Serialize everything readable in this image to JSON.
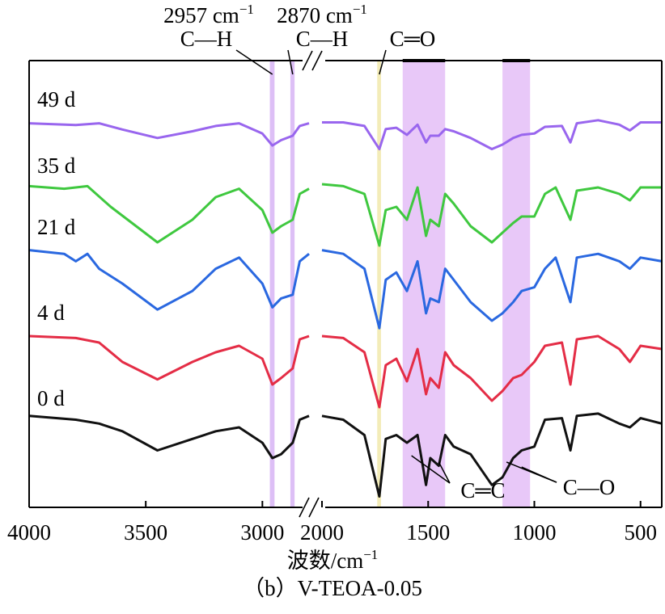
{
  "chart_data": {
    "type": "line",
    "caption": "（b）V-TEOA-0.05",
    "xlabel": "波数/cm",
    "xlabel_sup": "−1",
    "x_axis": {
      "reversed": true,
      "broken": true,
      "left_segment": [
        4000,
        2800
      ],
      "right_segment": [
        2000,
        400
      ],
      "ticks_left": [
        "4000",
        "3500",
        "3000"
      ],
      "ticks_right": [
        "2000",
        "1500",
        "1000",
        "500"
      ]
    },
    "y_axis": {
      "label": "",
      "ticks": false
    },
    "grid": false,
    "legend": "none",
    "series": [
      {
        "name": "49 d",
        "color": "#9966ee",
        "points": [
          [
            4000,
            0.12
          ],
          [
            3800,
            0.16
          ],
          [
            3700,
            0.12
          ],
          [
            3600,
            0.26
          ],
          [
            3450,
            0.45
          ],
          [
            3300,
            0.3
          ],
          [
            3200,
            0.18
          ],
          [
            3100,
            0.12
          ],
          [
            3000,
            0.35
          ],
          [
            2957,
            0.62
          ],
          [
            2920,
            0.5
          ],
          [
            2870,
            0.4
          ],
          [
            2840,
            0.18
          ],
          [
            2800,
            0.12
          ],
          [
            2000,
            0.1
          ],
          [
            1900,
            0.1
          ],
          [
            1800,
            0.18
          ],
          [
            1730,
            0.7
          ],
          [
            1700,
            0.25
          ],
          [
            1650,
            0.22
          ],
          [
            1600,
            0.38
          ],
          [
            1550,
            0.15
          ],
          [
            1510,
            0.55
          ],
          [
            1490,
            0.4
          ],
          [
            1450,
            0.4
          ],
          [
            1420,
            0.25
          ],
          [
            1380,
            0.3
          ],
          [
            1300,
            0.45
          ],
          [
            1200,
            0.7
          ],
          [
            1150,
            0.6
          ],
          [
            1100,
            0.45
          ],
          [
            1060,
            0.38
          ],
          [
            1000,
            0.35
          ],
          [
            950,
            0.2
          ],
          [
            870,
            0.18
          ],
          [
            830,
            0.55
          ],
          [
            800,
            0.12
          ],
          [
            700,
            0.05
          ],
          [
            600,
            0.15
          ],
          [
            550,
            0.28
          ],
          [
            500,
            0.1
          ],
          [
            400,
            0.1
          ]
        ]
      },
      {
        "name": "35 d",
        "color": "#3fc83f",
        "points": [
          [
            4000,
            0.08
          ],
          [
            3850,
            0.12
          ],
          [
            3750,
            0.08
          ],
          [
            3650,
            0.4
          ],
          [
            3450,
            0.95
          ],
          [
            3300,
            0.6
          ],
          [
            3200,
            0.25
          ],
          [
            3100,
            0.12
          ],
          [
            3000,
            0.45
          ],
          [
            2957,
            0.8
          ],
          [
            2920,
            0.7
          ],
          [
            2870,
            0.6
          ],
          [
            2840,
            0.2
          ],
          [
            2800,
            0.12
          ],
          [
            2000,
            0.05
          ],
          [
            1900,
            0.08
          ],
          [
            1800,
            0.2
          ],
          [
            1730,
            1.0
          ],
          [
            1700,
            0.45
          ],
          [
            1650,
            0.4
          ],
          [
            1600,
            0.6
          ],
          [
            1550,
            0.1
          ],
          [
            1510,
            0.85
          ],
          [
            1490,
            0.6
          ],
          [
            1450,
            0.7
          ],
          [
            1420,
            0.2
          ],
          [
            1380,
            0.35
          ],
          [
            1300,
            0.7
          ],
          [
            1200,
            0.95
          ],
          [
            1150,
            0.8
          ],
          [
            1100,
            0.65
          ],
          [
            1060,
            0.55
          ],
          [
            1000,
            0.55
          ],
          [
            950,
            0.2
          ],
          [
            900,
            0.1
          ],
          [
            830,
            0.6
          ],
          [
            800,
            0.15
          ],
          [
            700,
            0.1
          ],
          [
            600,
            0.2
          ],
          [
            550,
            0.3
          ],
          [
            500,
            0.1
          ],
          [
            400,
            0.1
          ]
        ]
      },
      {
        "name": "21 d",
        "color": "#2a68e0",
        "points": [
          [
            4000,
            0.05
          ],
          [
            3850,
            0.1
          ],
          [
            3800,
            0.2
          ],
          [
            3750,
            0.1
          ],
          [
            3700,
            0.3
          ],
          [
            3600,
            0.5
          ],
          [
            3450,
            0.85
          ],
          [
            3300,
            0.6
          ],
          [
            3200,
            0.3
          ],
          [
            3100,
            0.15
          ],
          [
            3000,
            0.5
          ],
          [
            2957,
            0.82
          ],
          [
            2920,
            0.7
          ],
          [
            2870,
            0.65
          ],
          [
            2840,
            0.2
          ],
          [
            2800,
            0.1
          ],
          [
            2000,
            0.05
          ],
          [
            1900,
            0.1
          ],
          [
            1800,
            0.3
          ],
          [
            1730,
            1.1
          ],
          [
            1700,
            0.45
          ],
          [
            1650,
            0.35
          ],
          [
            1600,
            0.6
          ],
          [
            1550,
            0.2
          ],
          [
            1510,
            0.9
          ],
          [
            1490,
            0.7
          ],
          [
            1450,
            0.75
          ],
          [
            1420,
            0.3
          ],
          [
            1380,
            0.45
          ],
          [
            1300,
            0.75
          ],
          [
            1200,
            1.0
          ],
          [
            1150,
            0.9
          ],
          [
            1100,
            0.75
          ],
          [
            1060,
            0.6
          ],
          [
            1000,
            0.55
          ],
          [
            950,
            0.3
          ],
          [
            900,
            0.15
          ],
          [
            830,
            0.75
          ],
          [
            800,
            0.15
          ],
          [
            700,
            0.1
          ],
          [
            600,
            0.2
          ],
          [
            550,
            0.3
          ],
          [
            500,
            0.15
          ],
          [
            400,
            0.2
          ]
        ]
      },
      {
        "name": "4 d",
        "color": "#e42d46",
        "points": [
          [
            4000,
            0.05
          ],
          [
            3800,
            0.08
          ],
          [
            3700,
            0.15
          ],
          [
            3600,
            0.45
          ],
          [
            3450,
            0.72
          ],
          [
            3300,
            0.45
          ],
          [
            3200,
            0.3
          ],
          [
            3100,
            0.2
          ],
          [
            3000,
            0.4
          ],
          [
            2957,
            0.8
          ],
          [
            2920,
            0.7
          ],
          [
            2870,
            0.55
          ],
          [
            2840,
            0.1
          ],
          [
            2800,
            0.05
          ],
          [
            2000,
            0.05
          ],
          [
            1900,
            0.08
          ],
          [
            1800,
            0.3
          ],
          [
            1730,
            1.15
          ],
          [
            1700,
            0.5
          ],
          [
            1650,
            0.4
          ],
          [
            1600,
            0.75
          ],
          [
            1550,
            0.25
          ],
          [
            1510,
            0.95
          ],
          [
            1490,
            0.7
          ],
          [
            1450,
            0.85
          ],
          [
            1420,
            0.3
          ],
          [
            1380,
            0.5
          ],
          [
            1300,
            0.7
          ],
          [
            1200,
            1.05
          ],
          [
            1150,
            0.9
          ],
          [
            1100,
            0.7
          ],
          [
            1060,
            0.65
          ],
          [
            1000,
            0.45
          ],
          [
            950,
            0.2
          ],
          [
            870,
            0.15
          ],
          [
            830,
            0.8
          ],
          [
            800,
            0.1
          ],
          [
            700,
            0.05
          ],
          [
            600,
            0.25
          ],
          [
            550,
            0.45
          ],
          [
            500,
            0.2
          ],
          [
            400,
            0.25
          ]
        ]
      },
      {
        "name": "0 d",
        "color": "#111111",
        "points": [
          [
            4000,
            0.05
          ],
          [
            3800,
            0.1
          ],
          [
            3700,
            0.15
          ],
          [
            3600,
            0.25
          ],
          [
            3450,
            0.5
          ],
          [
            3300,
            0.35
          ],
          [
            3200,
            0.25
          ],
          [
            3100,
            0.2
          ],
          [
            3000,
            0.4
          ],
          [
            2957,
            0.6
          ],
          [
            2920,
            0.55
          ],
          [
            2870,
            0.4
          ],
          [
            2840,
            0.1
          ],
          [
            2800,
            0.05
          ],
          [
            2000,
            0.05
          ],
          [
            1900,
            0.1
          ],
          [
            1800,
            0.3
          ],
          [
            1730,
            1.1
          ],
          [
            1700,
            0.35
          ],
          [
            1650,
            0.3
          ],
          [
            1600,
            0.4
          ],
          [
            1550,
            0.3
          ],
          [
            1510,
            0.95
          ],
          [
            1490,
            0.6
          ],
          [
            1450,
            0.7
          ],
          [
            1420,
            0.3
          ],
          [
            1380,
            0.45
          ],
          [
            1300,
            0.55
          ],
          [
            1200,
            0.95
          ],
          [
            1150,
            0.85
          ],
          [
            1100,
            0.6
          ],
          [
            1060,
            0.5
          ],
          [
            1000,
            0.45
          ],
          [
            950,
            0.1
          ],
          [
            870,
            0.08
          ],
          [
            830,
            0.5
          ],
          [
            800,
            0.05
          ],
          [
            700,
            0.02
          ],
          [
            600,
            0.15
          ],
          [
            550,
            0.2
          ],
          [
            500,
            0.08
          ],
          [
            400,
            0.15
          ]
        ]
      }
    ],
    "series_offsets": [
      0,
      1,
      2,
      3,
      4
    ],
    "highlight_bands": [
      {
        "x": [
          2968,
          2948
        ],
        "color": "#d9b8f5"
      },
      {
        "x": [
          2880,
          2862
        ],
        "color": "#d9b8f5"
      },
      {
        "x": [
          1740,
          1722
        ],
        "color": "#f2eab0"
      },
      {
        "x": [
          1620,
          1420
        ],
        "color": "#e6c2f7"
      },
      {
        "x": [
          1150,
          1020
        ],
        "color": "#e6c2f7"
      }
    ],
    "annotations": {
      "ch1_wavenumber": "2957 cm",
      "ch1_sup": "−1",
      "ch1_group": "C—H",
      "ch2_wavenumber": "2870 cm",
      "ch2_sup": "−1",
      "ch2_group": "C—H",
      "carbonyl": "C═O",
      "cc": "C═C",
      "co": "C—O"
    }
  }
}
